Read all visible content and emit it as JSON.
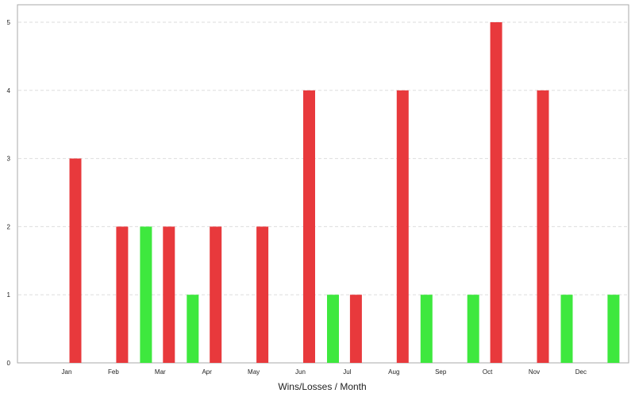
{
  "chart_data": {
    "type": "bar",
    "xlabel": "Wins/Losses / Month",
    "ylabel": "",
    "ylim": [
      0,
      5
    ],
    "yticks": [
      0,
      1,
      2,
      3,
      4,
      5
    ],
    "grid": true,
    "categories": [
      "Jan",
      "Feb",
      "Mar",
      "Apr",
      "May",
      "Jun",
      "Jul",
      "Aug",
      "Sep",
      "Oct",
      "Nov",
      "Dec"
    ],
    "series": [
      {
        "color": "#3ee83e",
        "values": [
          0,
          2,
          1,
          0,
          0,
          1,
          0,
          1,
          1,
          0,
          1,
          1
        ]
      },
      {
        "color": "#e8393c",
        "values": [
          3,
          2,
          2,
          2,
          2,
          4,
          1,
          4,
          0,
          5,
          4,
          0
        ]
      }
    ]
  }
}
